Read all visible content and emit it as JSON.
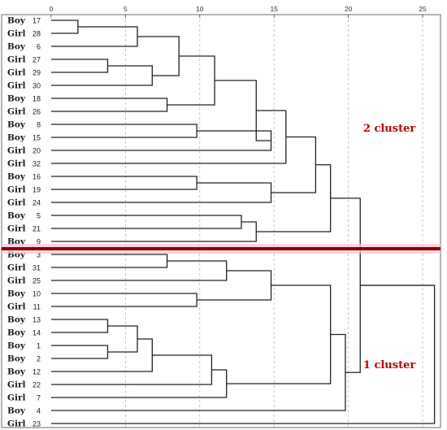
{
  "chart_data": {
    "type": "dendrogram",
    "x_axis": {
      "range": [
        0,
        25
      ],
      "ticks": [
        0,
        5,
        10,
        15,
        20,
        25
      ],
      "grid": true,
      "grid_style": "dashed-vertical"
    },
    "leaves": [
      {
        "case": "17",
        "gender": "Boy"
      },
      {
        "case": "28",
        "gender": "Girl"
      },
      {
        "case": "6",
        "gender": "Boy"
      },
      {
        "case": "27",
        "gender": "Girl"
      },
      {
        "case": "29",
        "gender": "Girl"
      },
      {
        "case": "30",
        "gender": "Girl"
      },
      {
        "case": "18",
        "gender": "Boy"
      },
      {
        "case": "26",
        "gender": "Girl"
      },
      {
        "case": "8",
        "gender": "Boy"
      },
      {
        "case": "15",
        "gender": "Boy"
      },
      {
        "case": "20",
        "gender": "Girl"
      },
      {
        "case": "32",
        "gender": "Girl"
      },
      {
        "case": "16",
        "gender": "Boy"
      },
      {
        "case": "19",
        "gender": "Girl"
      },
      {
        "case": "24",
        "gender": "Girl"
      },
      {
        "case": "5",
        "gender": "Boy"
      },
      {
        "case": "21",
        "gender": "Girl"
      },
      {
        "case": "9",
        "gender": "Boy"
      },
      {
        "case": "3",
        "gender": "Boy"
      },
      {
        "case": "31",
        "gender": "Girl"
      },
      {
        "case": "25",
        "gender": "Girl"
      },
      {
        "case": "10",
        "gender": "Boy"
      },
      {
        "case": "11",
        "gender": "Girl"
      },
      {
        "case": "13",
        "gender": "Boy"
      },
      {
        "case": "14",
        "gender": "Boy"
      },
      {
        "case": "1",
        "gender": "Boy"
      },
      {
        "case": "2",
        "gender": "Boy"
      },
      {
        "case": "12",
        "gender": "Boy"
      },
      {
        "case": "22",
        "gender": "Girl"
      },
      {
        "case": "7",
        "gender": "Girl"
      },
      {
        "case": "4",
        "gender": "Boy"
      },
      {
        "case": "23",
        "gender": "Girl"
      }
    ],
    "merges": [
      {
        "children": [
          "17",
          "28"
        ],
        "height": 1.8
      },
      {
        "children": [
          "27",
          "29"
        ],
        "height": 3.8
      },
      {
        "children": [
          1,
          "6"
        ],
        "height": 5.8
      },
      {
        "children": [
          2,
          "30"
        ],
        "height": 6.8
      },
      {
        "children": [
          3,
          4
        ],
        "height": 8.6
      },
      {
        "children": [
          "18",
          "26"
        ],
        "height": 7.8
      },
      {
        "children": [
          5,
          6
        ],
        "height": 11.0
      },
      {
        "children": [
          "8",
          "15"
        ],
        "height": 9.8
      },
      {
        "children": [
          8,
          "20"
        ],
        "height": 14.8
      },
      {
        "children": [
          7,
          9
        ],
        "height": 13.8
      },
      {
        "children": [
          10,
          "32"
        ],
        "height": 15.8
      },
      {
        "children": [
          "16",
          "19"
        ],
        "height": 9.8
      },
      {
        "children": [
          12,
          "24"
        ],
        "height": 14.8
      },
      {
        "children": [
          11,
          13
        ],
        "height": 17.8
      },
      {
        "children": [
          "5",
          "21"
        ],
        "height": 12.8
      },
      {
        "children": [
          15,
          "9"
        ],
        "height": 13.8
      },
      {
        "children": [
          14,
          16
        ],
        "height": 18.8
      },
      {
        "children": [
          "3",
          "31"
        ],
        "height": 7.8
      },
      {
        "children": [
          18,
          "25"
        ],
        "height": 11.8
      },
      {
        "children": [
          "10",
          "11"
        ],
        "height": 9.8
      },
      {
        "children": [
          19,
          20
        ],
        "height": 14.8
      },
      {
        "children": [
          "13",
          "14"
        ],
        "height": 3.8
      },
      {
        "children": [
          "1",
          "2"
        ],
        "height": 3.8
      },
      {
        "children": [
          22,
          23
        ],
        "height": 5.8
      },
      {
        "children": [
          24,
          "12"
        ],
        "height": 6.8
      },
      {
        "children": [
          25,
          "22"
        ],
        "height": 10.8
      },
      {
        "children": [
          26,
          "7"
        ],
        "height": 11.8
      },
      {
        "children": [
          21,
          27
        ],
        "height": 18.8
      },
      {
        "children": [
          28,
          "4"
        ],
        "height": 19.8
      },
      {
        "children": [
          17,
          29
        ],
        "height": 20.8
      },
      {
        "children": [
          30,
          "23"
        ],
        "height": 25.8
      }
    ],
    "cut_line": {
      "between_leaves": [
        "9",
        "3"
      ],
      "color": "#8b0000"
    },
    "annotations": [
      {
        "text": "2 cluster",
        "x": 21,
        "y_leaf_index": 8.3,
        "color": "#cc0000"
      },
      {
        "text": "1 cluster",
        "x": 21,
        "y_leaf_index": 26.5,
        "color": "#cc0000"
      }
    ]
  }
}
